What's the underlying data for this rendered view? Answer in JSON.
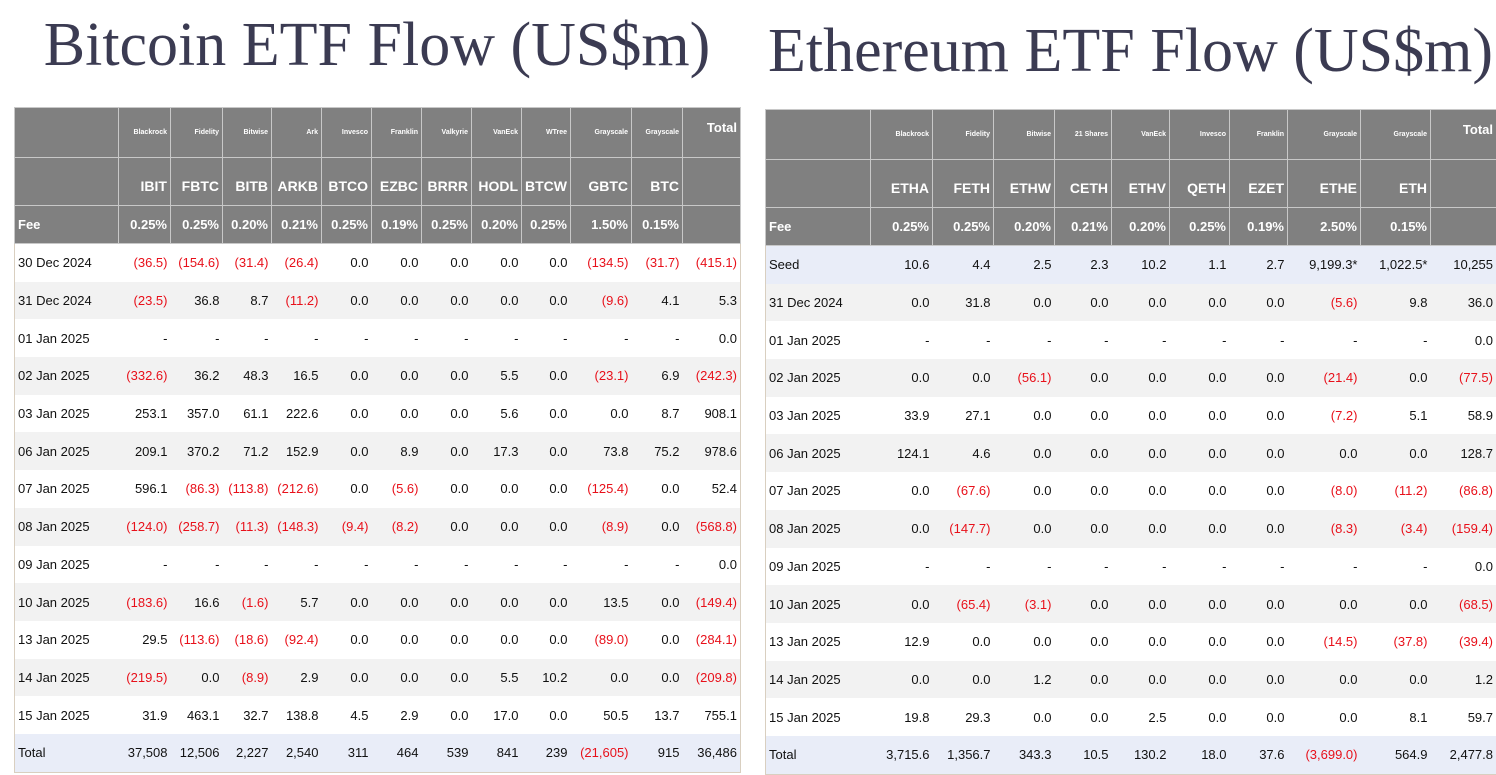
{
  "btc": {
    "title": "Bitcoin ETF Flow (US$m)",
    "issuers": [
      "Blackrock",
      "Fidelity",
      "Bitwise",
      "Ark",
      "Invesco",
      "Franklin",
      "Valkyrie",
      "VanEck",
      "WTree",
      "Grayscale",
      "Grayscale"
    ],
    "total_label": "Total",
    "tickers": [
      "IBIT",
      "FBTC",
      "BITB",
      "ARKB",
      "BTCO",
      "EZBC",
      "BRRR",
      "HODL",
      "BTCW",
      "GBTC",
      "BTC"
    ],
    "fee_label": "Fee",
    "fees": [
      "0.25%",
      "0.25%",
      "0.20%",
      "0.21%",
      "0.25%",
      "0.19%",
      "0.25%",
      "0.20%",
      "0.25%",
      "1.50%",
      "0.15%"
    ],
    "rows": [
      [
        "30 Dec 2024",
        "(36.5)",
        "(154.6)",
        "(31.4)",
        "(26.4)",
        "0.0",
        "0.0",
        "0.0",
        "0.0",
        "0.0",
        "(134.5)",
        "(31.7)",
        "(415.1)"
      ],
      [
        "31 Dec 2024",
        "(23.5)",
        "36.8",
        "8.7",
        "(11.2)",
        "0.0",
        "0.0",
        "0.0",
        "0.0",
        "0.0",
        "(9.6)",
        "4.1",
        "5.3"
      ],
      [
        "01 Jan 2025",
        "-",
        "-",
        "-",
        "-",
        "-",
        "-",
        "-",
        "-",
        "-",
        "-",
        "-",
        "0.0"
      ],
      [
        "02 Jan 2025",
        "(332.6)",
        "36.2",
        "48.3",
        "16.5",
        "0.0",
        "0.0",
        "0.0",
        "5.5",
        "0.0",
        "(23.1)",
        "6.9",
        "(242.3)"
      ],
      [
        "03 Jan 2025",
        "253.1",
        "357.0",
        "61.1",
        "222.6",
        "0.0",
        "0.0",
        "0.0",
        "5.6",
        "0.0",
        "0.0",
        "8.7",
        "908.1"
      ],
      [
        "06 Jan 2025",
        "209.1",
        "370.2",
        "71.2",
        "152.9",
        "0.0",
        "8.9",
        "0.0",
        "17.3",
        "0.0",
        "73.8",
        "75.2",
        "978.6"
      ],
      [
        "07 Jan 2025",
        "596.1",
        "(86.3)",
        "(113.8)",
        "(212.6)",
        "0.0",
        "(5.6)",
        "0.0",
        "0.0",
        "0.0",
        "(125.4)",
        "0.0",
        "52.4"
      ],
      [
        "08 Jan 2025",
        "(124.0)",
        "(258.7)",
        "(11.3)",
        "(148.3)",
        "(9.4)",
        "(8.2)",
        "0.0",
        "0.0",
        "0.0",
        "(8.9)",
        "0.0",
        "(568.8)"
      ],
      [
        "09 Jan 2025",
        "-",
        "-",
        "-",
        "-",
        "-",
        "-",
        "-",
        "-",
        "-",
        "-",
        "-",
        "0.0"
      ],
      [
        "10 Jan 2025",
        "(183.6)",
        "16.6",
        "(1.6)",
        "5.7",
        "0.0",
        "0.0",
        "0.0",
        "0.0",
        "0.0",
        "13.5",
        "0.0",
        "(149.4)"
      ],
      [
        "13 Jan 2025",
        "29.5",
        "(113.6)",
        "(18.6)",
        "(92.4)",
        "0.0",
        "0.0",
        "0.0",
        "0.0",
        "0.0",
        "(89.0)",
        "0.0",
        "(284.1)"
      ],
      [
        "14 Jan 2025",
        "(219.5)",
        "0.0",
        "(8.9)",
        "2.9",
        "0.0",
        "0.0",
        "0.0",
        "5.5",
        "10.2",
        "0.0",
        "0.0",
        "(209.8)"
      ],
      [
        "15 Jan 2025",
        "31.9",
        "463.1",
        "32.7",
        "138.8",
        "4.5",
        "2.9",
        "0.0",
        "17.0",
        "0.0",
        "50.5",
        "13.7",
        "755.1"
      ]
    ],
    "total_row": [
      "Total",
      "37,508",
      "12,506",
      "2,227",
      "2,540",
      "311",
      "464",
      "539",
      "841",
      "239",
      "(21,605)",
      "915",
      "36,486"
    ]
  },
  "eth": {
    "title": "Ethereum ETF Flow (US$m)",
    "issuers": [
      "Blackrock",
      "Fidelity",
      "Bitwise",
      "21 Shares",
      "VanEck",
      "Invesco",
      "Franklin",
      "Grayscale",
      "Grayscale"
    ],
    "total_label": "Total",
    "tickers": [
      "ETHA",
      "FETH",
      "ETHW",
      "CETH",
      "ETHV",
      "QETH",
      "EZET",
      "ETHE",
      "ETH"
    ],
    "fee_label": "Fee",
    "fees": [
      "0.25%",
      "0.25%",
      "0.20%",
      "0.21%",
      "0.20%",
      "0.25%",
      "0.19%",
      "2.50%",
      "0.15%"
    ],
    "seed_row": [
      "Seed",
      "10.6",
      "4.4",
      "2.5",
      "2.3",
      "10.2",
      "1.1",
      "2.7",
      "9,199.3*",
      "1,022.5*",
      "10,255"
    ],
    "rows": [
      [
        "31 Dec 2024",
        "0.0",
        "31.8",
        "0.0",
        "0.0",
        "0.0",
        "0.0",
        "0.0",
        "(5.6)",
        "9.8",
        "36.0"
      ],
      [
        "01 Jan 2025",
        "-",
        "-",
        "-",
        "-",
        "-",
        "-",
        "-",
        "-",
        "-",
        "0.0"
      ],
      [
        "02 Jan 2025",
        "0.0",
        "0.0",
        "(56.1)",
        "0.0",
        "0.0",
        "0.0",
        "0.0",
        "(21.4)",
        "0.0",
        "(77.5)"
      ],
      [
        "03 Jan 2025",
        "33.9",
        "27.1",
        "0.0",
        "0.0",
        "0.0",
        "0.0",
        "0.0",
        "(7.2)",
        "5.1",
        "58.9"
      ],
      [
        "06 Jan 2025",
        "124.1",
        "4.6",
        "0.0",
        "0.0",
        "0.0",
        "0.0",
        "0.0",
        "0.0",
        "0.0",
        "128.7"
      ],
      [
        "07 Jan 2025",
        "0.0",
        "(67.6)",
        "0.0",
        "0.0",
        "0.0",
        "0.0",
        "0.0",
        "(8.0)",
        "(11.2)",
        "(86.8)"
      ],
      [
        "08 Jan 2025",
        "0.0",
        "(147.7)",
        "0.0",
        "0.0",
        "0.0",
        "0.0",
        "0.0",
        "(8.3)",
        "(3.4)",
        "(159.4)"
      ],
      [
        "09 Jan 2025",
        "-",
        "-",
        "-",
        "-",
        "-",
        "-",
        "-",
        "-",
        "-",
        "0.0"
      ],
      [
        "10 Jan 2025",
        "0.0",
        "(65.4)",
        "(3.1)",
        "0.0",
        "0.0",
        "0.0",
        "0.0",
        "0.0",
        "0.0",
        "(68.5)"
      ],
      [
        "13 Jan 2025",
        "12.9",
        "0.0",
        "0.0",
        "0.0",
        "0.0",
        "0.0",
        "0.0",
        "(14.5)",
        "(37.8)",
        "(39.4)"
      ],
      [
        "14 Jan 2025",
        "0.0",
        "0.0",
        "1.2",
        "0.0",
        "0.0",
        "0.0",
        "0.0",
        "0.0",
        "0.0",
        "1.2"
      ],
      [
        "15 Jan 2025",
        "19.8",
        "29.3",
        "0.0",
        "0.0",
        "2.5",
        "0.0",
        "0.0",
        "0.0",
        "8.1",
        "59.7"
      ]
    ],
    "total_row": [
      "Total",
      "3,715.6",
      "1,356.7",
      "343.3",
      "10.5",
      "130.2",
      "18.0",
      "37.6",
      "(3,699.0)",
      "564.9",
      "2,477.8"
    ]
  }
}
